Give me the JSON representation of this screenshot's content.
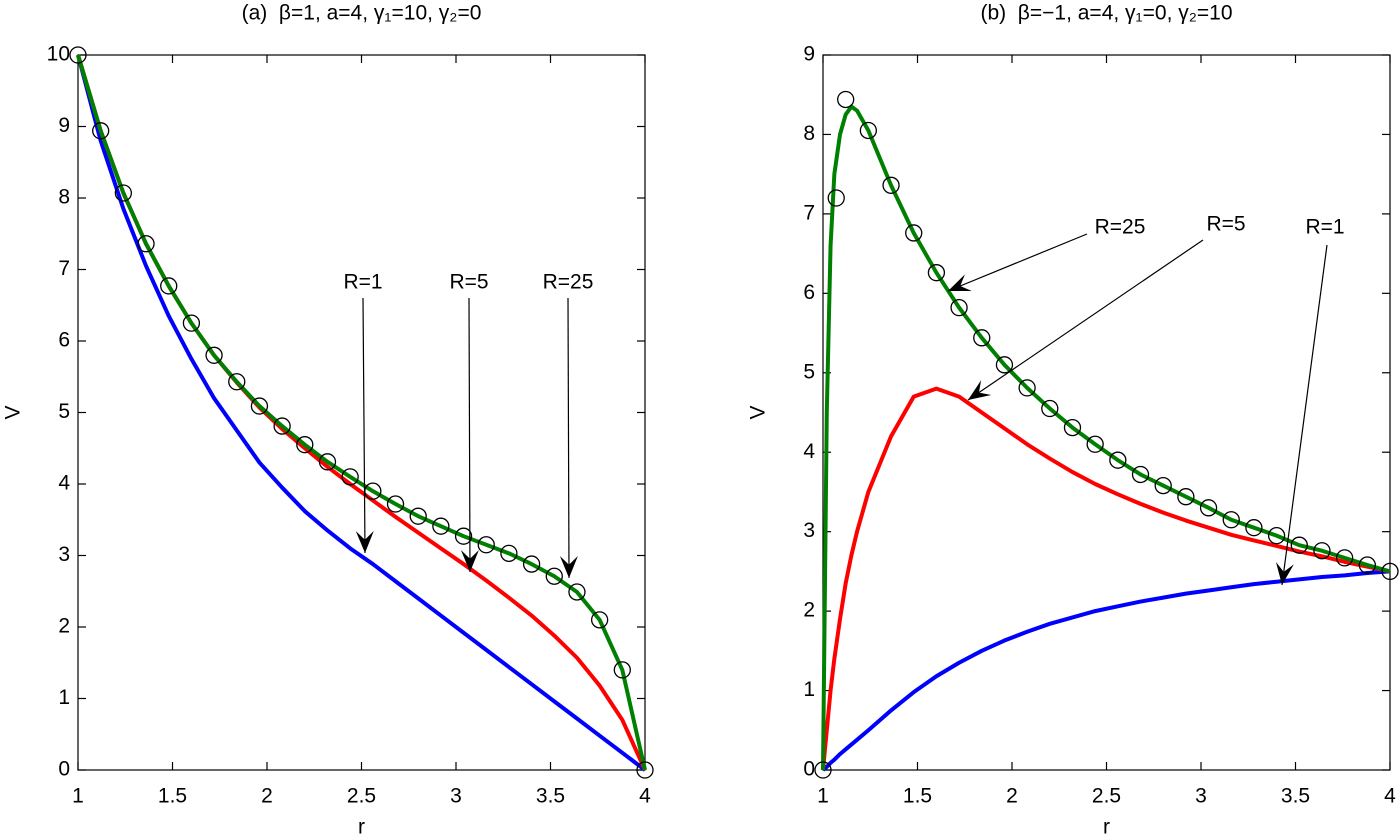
{
  "chart_data": [
    {
      "type": "line",
      "title": "(a)  β=1, a=4, γ₁=10, γ₂=0",
      "xlabel": "r",
      "ylabel": "V",
      "x": [
        1,
        1.12,
        1.24,
        1.36,
        1.48,
        1.6,
        1.72,
        1.84,
        1.96,
        2.08,
        2.2,
        2.32,
        2.44,
        2.56,
        2.68,
        2.8,
        2.92,
        3.04,
        3.16,
        3.28,
        3.4,
        3.52,
        3.64,
        3.76,
        3.88,
        4
      ],
      "series": [
        {
          "color": "#0000ff",
          "values": [
            10,
            8.8,
            7.85,
            7.05,
            6.35,
            5.75,
            5.2,
            4.75,
            4.3,
            3.95,
            3.62,
            3.35,
            3.1,
            2.88,
            2.64,
            2.4,
            2.16,
            1.92,
            1.68,
            1.44,
            1.2,
            0.96,
            0.72,
            0.48,
            0.24,
            0
          ]
        },
        {
          "color": "#ff0000",
          "values": [
            10,
            8.94,
            8.07,
            7.36,
            6.77,
            6.25,
            5.8,
            5.42,
            5.07,
            4.77,
            4.5,
            4.24,
            4.0,
            3.77,
            3.54,
            3.32,
            3.1,
            2.88,
            2.65,
            2.41,
            2.16,
            1.88,
            1.57,
            1.18,
            0.7,
            0
          ]
        },
        {
          "color": "#008000",
          "values": [
            10,
            8.94,
            8.07,
            7.36,
            6.77,
            6.25,
            5.8,
            5.43,
            5.09,
            4.81,
            4.55,
            4.31,
            4.1,
            3.9,
            3.72,
            3.55,
            3.41,
            3.27,
            3.15,
            3.03,
            2.88,
            2.71,
            2.49,
            2.1,
            1.4,
            0
          ]
        },
        {
          "color": "#000000",
          "marker": "circle",
          "values": [
            10,
            8.94,
            8.07,
            7.36,
            6.77,
            6.25,
            5.8,
            5.43,
            5.09,
            4.81,
            4.55,
            4.31,
            4.1,
            3.9,
            3.72,
            3.55,
            3.41,
            3.27,
            3.15,
            3.03,
            2.88,
            2.71,
            2.49,
            2.1,
            1.4,
            0
          ]
        }
      ],
      "annotations": [
        "R=1",
        "R=5",
        "R=25"
      ],
      "xlim": [
        1,
        4
      ],
      "xticks": [
        1,
        1.5,
        2,
        2.5,
        3,
        3.5,
        4
      ],
      "ylim": [
        0,
        10
      ],
      "yticks": [
        0,
        1,
        2,
        3,
        4,
        5,
        6,
        7,
        8,
        9,
        10
      ]
    },
    {
      "type": "line",
      "title": "(b)  β=−1, a=4, γ₁=0, γ₂=10",
      "xlabel": "r",
      "ylabel": "V",
      "x": [
        1,
        1.02,
        1.04,
        1.06,
        1.09,
        1.12,
        1.15,
        1.18,
        1.24,
        1.36,
        1.48,
        1.6,
        1.72,
        1.84,
        1.96,
        2.08,
        2.2,
        2.32,
        2.44,
        2.56,
        2.68,
        2.8,
        2.92,
        3.04,
        3.16,
        3.28,
        3.4,
        3.52,
        3.64,
        3.76,
        3.88,
        4
      ],
      "series": [
        {
          "color": "#0000ff",
          "values": [
            0,
            0.04,
            0.09,
            0.13,
            0.2,
            0.26,
            0.32,
            0.38,
            0.5,
            0.75,
            0.98,
            1.18,
            1.35,
            1.5,
            1.63,
            1.74,
            1.84,
            1.92,
            2.0,
            2.06,
            2.12,
            2.17,
            2.22,
            2.26,
            2.3,
            2.34,
            2.37,
            2.4,
            2.43,
            2.45,
            2.48,
            2.5
          ]
        },
        {
          "color": "#ff0000",
          "values": [
            0,
            0.5,
            1.0,
            1.4,
            1.9,
            2.35,
            2.7,
            3.0,
            3.5,
            4.2,
            4.7,
            4.8,
            4.7,
            4.5,
            4.3,
            4.1,
            3.92,
            3.75,
            3.6,
            3.47,
            3.35,
            3.24,
            3.14,
            3.05,
            2.96,
            2.89,
            2.82,
            2.75,
            2.69,
            2.62,
            2.56,
            2.5
          ]
        },
        {
          "color": "#008000",
          "values": [
            0,
            4.5,
            6.6,
            7.5,
            8.0,
            8.25,
            8.35,
            8.3,
            8.05,
            7.36,
            6.76,
            6.26,
            5.82,
            5.44,
            5.1,
            4.81,
            4.55,
            4.31,
            4.1,
            3.9,
            3.72,
            3.58,
            3.44,
            3.3,
            3.15,
            3.05,
            2.95,
            2.83,
            2.76,
            2.67,
            2.58,
            2.5
          ]
        },
        {
          "color": "#000000",
          "marker": "circle",
          "x": [
            1,
            1.07,
            1.12,
            1.24,
            1.36,
            1.48,
            1.6,
            1.72,
            1.84,
            1.96,
            2.08,
            2.2,
            2.32,
            2.44,
            2.56,
            2.68,
            2.8,
            2.92,
            3.04,
            3.16,
            3.28,
            3.4,
            3.52,
            3.64,
            3.76,
            3.88,
            4
          ],
          "values": [
            0,
            7.2,
            8.44,
            8.05,
            7.36,
            6.76,
            6.26,
            5.82,
            5.44,
            5.1,
            4.81,
            4.55,
            4.31,
            4.1,
            3.9,
            3.72,
            3.58,
            3.44,
            3.3,
            3.15,
            3.05,
            2.95,
            2.83,
            2.76,
            2.67,
            2.58,
            2.5
          ]
        }
      ],
      "annotations": [
        "R=25",
        "R=5",
        "R=1"
      ],
      "xlim": [
        1,
        4
      ],
      "xticks": [
        1,
        1.5,
        2,
        2.5,
        3,
        3.5,
        4
      ],
      "ylim": [
        0,
        9
      ],
      "yticks": [
        0,
        1,
        2,
        3,
        4,
        5,
        6,
        7,
        8,
        9
      ]
    }
  ]
}
